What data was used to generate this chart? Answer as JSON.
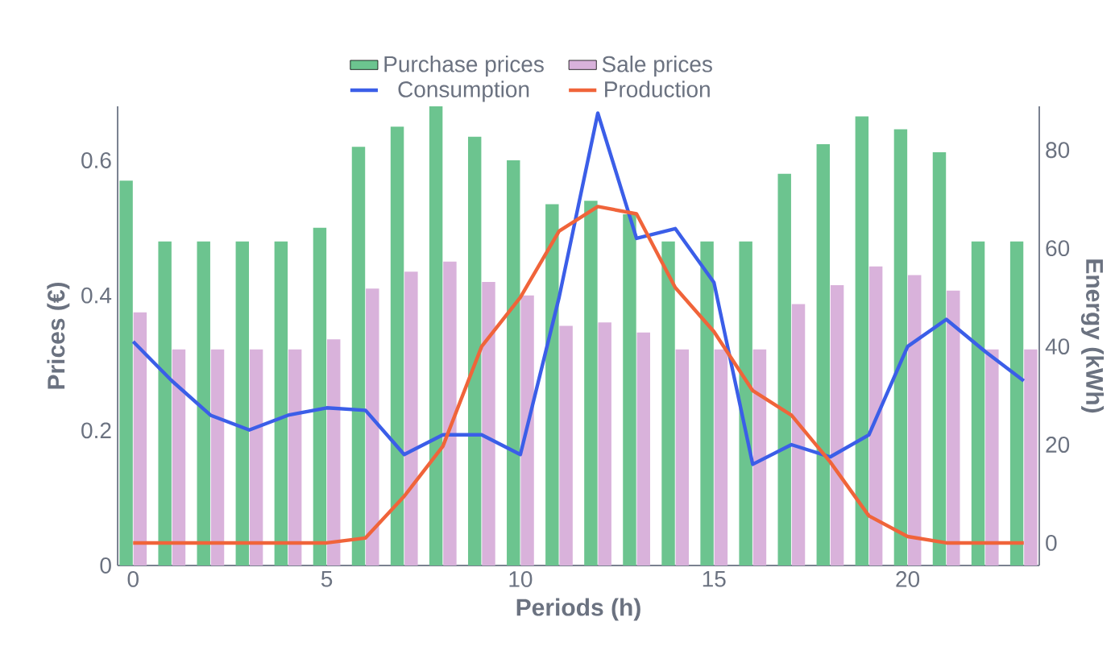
{
  "chart_data": {
    "type": "bar",
    "xlabel": "Periods (h)",
    "ylabel": "Prices (€)",
    "y2label": "Energy (kWh)",
    "x": [
      0,
      1,
      2,
      3,
      4,
      5,
      6,
      7,
      8,
      9,
      10,
      11,
      12,
      13,
      14,
      15,
      16,
      17,
      18,
      19,
      20,
      21,
      22,
      23
    ],
    "xlim": [
      -0.4,
      23.4
    ],
    "xticks": [
      0,
      5,
      10,
      15,
      20
    ],
    "ylim": [
      0,
      0.68
    ],
    "yticks": [
      0,
      0.2,
      0.4,
      0.6
    ],
    "y2lim": [
      -4.6,
      88.9
    ],
    "y2ticks": [
      0,
      20,
      40,
      60,
      80
    ],
    "legend": "top",
    "series": [
      {
        "name": "Purchase prices",
        "color": "#6cc48f",
        "values": [
          0.57,
          0.48,
          0.48,
          0.48,
          0.48,
          0.5,
          0.62,
          0.65,
          0.68,
          0.635,
          0.6,
          0.535,
          0.54,
          0.52,
          0.48,
          0.48,
          0.48,
          0.58,
          0.624,
          0.665,
          0.646,
          0.612,
          0.48,
          0.48
        ]
      },
      {
        "name": "Sale prices",
        "color": "#d9b2db",
        "values": [
          0.375,
          0.32,
          0.32,
          0.32,
          0.32,
          0.335,
          0.41,
          0.435,
          0.45,
          0.42,
          0.4,
          0.355,
          0.36,
          0.345,
          0.32,
          0.32,
          0.32,
          0.387,
          0.415,
          0.443,
          0.43,
          0.407,
          0.32,
          0.32
        ]
      },
      {
        "name": "Consumption",
        "type": "line",
        "axis": "y2",
        "color": "#3b5ee8",
        "values": [
          41,
          33,
          26,
          23,
          26,
          27.5,
          27,
          18,
          22,
          22,
          18,
          50,
          87.5,
          62,
          64,
          53,
          16,
          20,
          17.5,
          22,
          40,
          45.5,
          39,
          33
        ]
      },
      {
        "name": "Production",
        "type": "line",
        "axis": "y2",
        "color": "#f0643a",
        "values": [
          0,
          0,
          0,
          0,
          0,
          0,
          1,
          9.5,
          19.7,
          40,
          50,
          63.5,
          68.5,
          67,
          52,
          43,
          31,
          26,
          16.5,
          5.5,
          1.3,
          0,
          0,
          0
        ]
      }
    ]
  }
}
